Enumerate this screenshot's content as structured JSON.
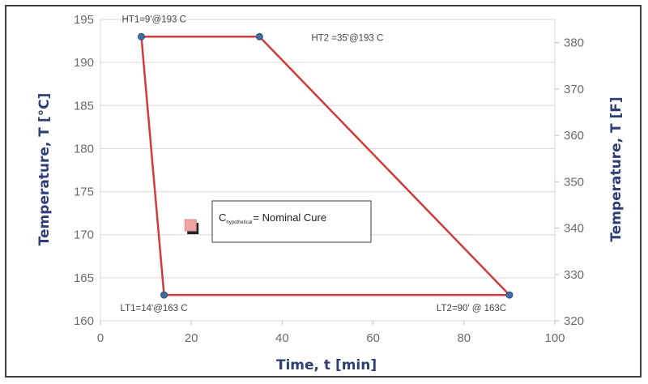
{
  "chart_data": {
    "type": "line",
    "xlabel": "Time, t [min]",
    "ylabel": "Temperature, T [°C]",
    "y2label": "Temperature, T [F]",
    "xlim": [
      0,
      100
    ],
    "ylim": [
      160,
      195
    ],
    "y2lim": [
      320,
      385
    ],
    "xticks": [
      "0",
      "20",
      "40",
      "60",
      "80",
      "100"
    ],
    "yticks": [
      "160",
      "165",
      "170",
      "175",
      "180",
      "185",
      "190",
      "195"
    ],
    "y2ticks": [
      "320",
      "330",
      "340",
      "350",
      "360",
      "370",
      "380"
    ],
    "grid": true,
    "series": [
      {
        "x": [
          9,
          35,
          90,
          14,
          9
        ],
        "y": [
          193,
          193,
          163,
          163,
          193
        ]
      }
    ],
    "points": [
      {
        "x": 9,
        "y": 193,
        "label": "HT1=9'@193 C",
        "anchor": "above"
      },
      {
        "x": 35,
        "y": 193,
        "label": "HT2 =35'@193 C",
        "anchor": "right"
      },
      {
        "x": 14,
        "y": 163,
        "label": "LT1=14'@163 C",
        "anchor": "below"
      },
      {
        "x": 90,
        "y": 163,
        "label": "LT2=90' @ 163C",
        "anchor": "below-left"
      }
    ],
    "legend": {
      "main": "C",
      "subscript": "hypothetical",
      "suffix": "= Nominal Cure",
      "marker": {
        "x": 20,
        "y": 171
      },
      "placement": "center"
    },
    "colors": {
      "line": "#d23b3b",
      "point": "#3e6fa0",
      "axis_title": "#2e3f78",
      "grid": "#d9d9d9",
      "marker": "#f0a4a4"
    }
  }
}
